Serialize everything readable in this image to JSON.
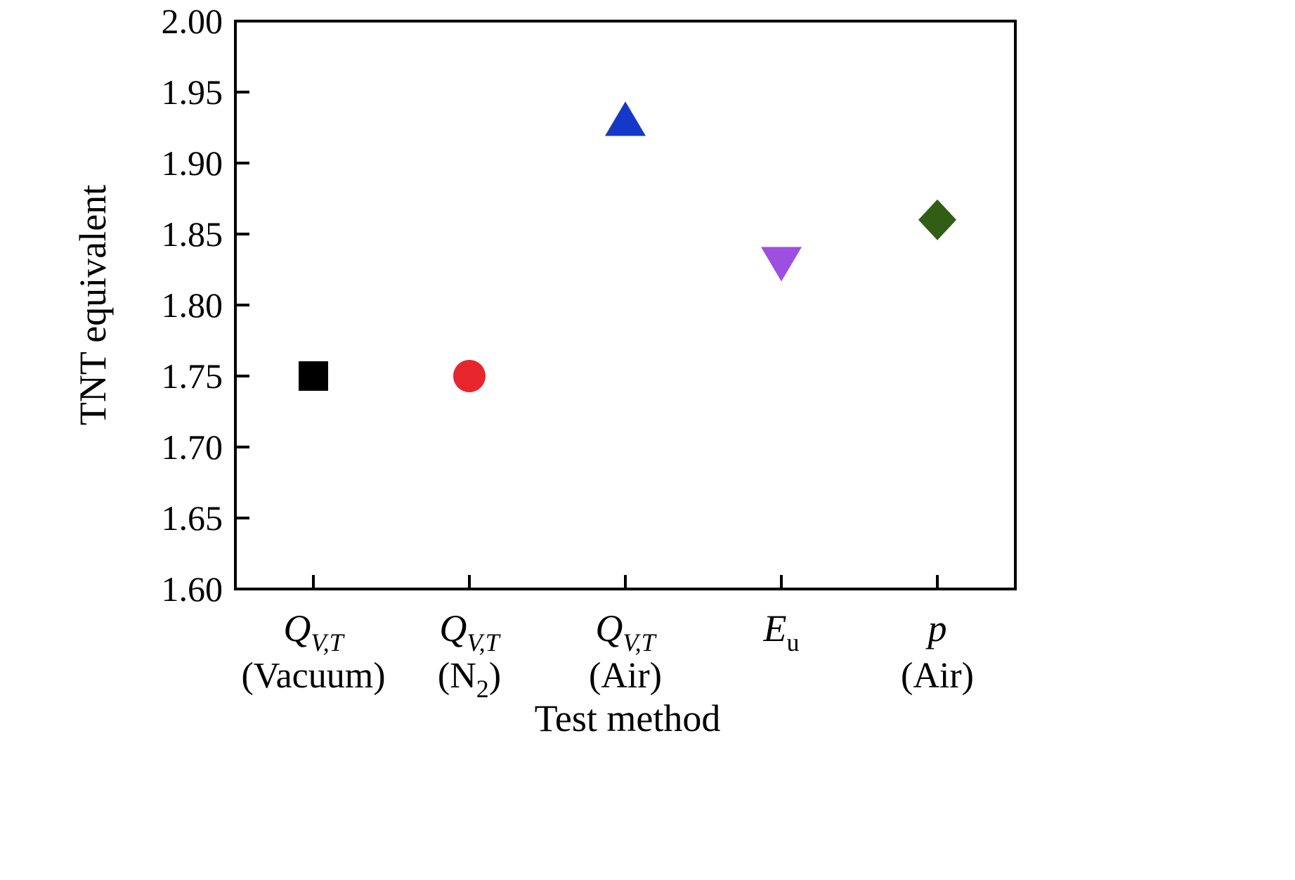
{
  "chart_data": {
    "type": "scatter",
    "title": "",
    "xlabel": "Test method",
    "ylabel": "TNT equivalent",
    "ylim": [
      1.6,
      2.0
    ],
    "ytick_step": 0.05,
    "yticks": [
      1.6,
      1.65,
      1.7,
      1.75,
      1.8,
      1.85,
      1.9,
      1.95,
      2.0
    ],
    "grid": false,
    "legend": "none",
    "axis_color": "#000000",
    "background": "#ffffff",
    "categories": [
      {
        "symbol": "Q",
        "symbol_sub": "V,T",
        "sub_italic": true,
        "note_pre": "(Vacuum)",
        "note_sub": "",
        "note_post": ""
      },
      {
        "symbol": "Q",
        "symbol_sub": "V,T",
        "sub_italic": true,
        "note_pre": "(N",
        "note_sub": "2",
        "note_post": ")"
      },
      {
        "symbol": "Q",
        "symbol_sub": "V,T",
        "sub_italic": true,
        "note_pre": "(Air)",
        "note_sub": "",
        "note_post": ""
      },
      {
        "symbol": "E",
        "symbol_sub": "u",
        "sub_italic": false,
        "note_pre": "",
        "note_sub": "",
        "note_post": ""
      },
      {
        "symbol": "p",
        "symbol_sub": "",
        "sub_italic": false,
        "note_pre": "(Air)",
        "note_sub": "",
        "note_post": ""
      }
    ],
    "points": [
      {
        "category_index": 0,
        "value": 1.75,
        "marker": "square",
        "color": "#000000"
      },
      {
        "category_index": 1,
        "value": 1.75,
        "marker": "circle",
        "color": "#e8262d"
      },
      {
        "category_index": 2,
        "value": 1.93,
        "marker": "triangle-up",
        "color": "#1438c8"
      },
      {
        "category_index": 3,
        "value": 1.83,
        "marker": "triangle-down",
        "color": "#9c4fe0"
      },
      {
        "category_index": 4,
        "value": 1.86,
        "marker": "diamond",
        "color": "#2f5e14"
      }
    ]
  }
}
